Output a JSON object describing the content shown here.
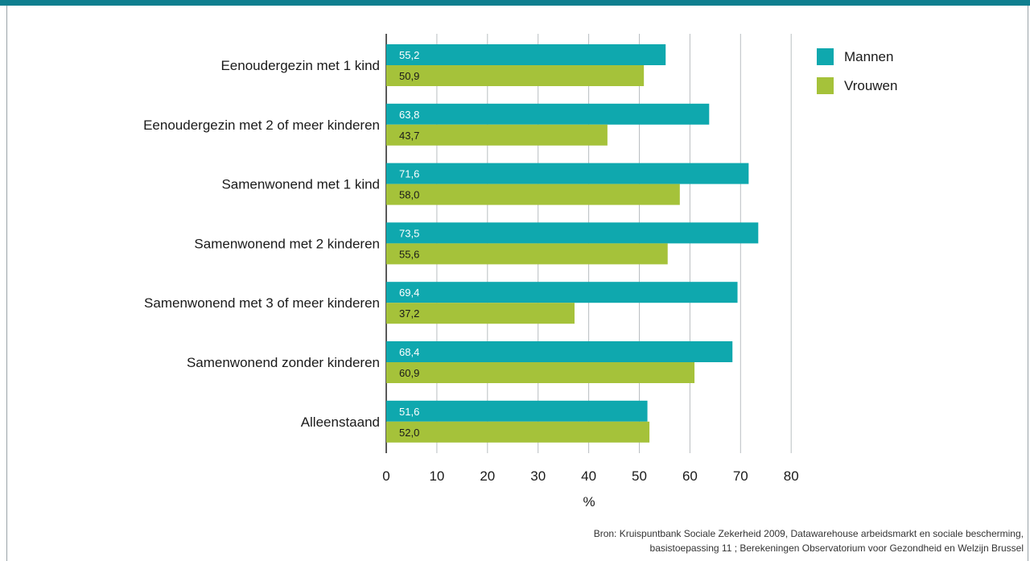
{
  "figure": {
    "title": ""
  },
  "chart_data": {
    "type": "bar",
    "orientation": "horizontal",
    "categories": [
      "Eenoudergezin met 1 kind",
      "Eenoudergezin met 2 of meer kinderen",
      "Samenwonend met 1 kind",
      "Samenwonend met 2 kinderen",
      "Samenwonend met 3 of meer kinderen",
      "Samenwonend zonder kinderen",
      "Alleenstaand"
    ],
    "series": [
      {
        "name": "Mannen",
        "color": "#0fa8ae",
        "label_color": "#ffffff",
        "values": [
          55.2,
          63.8,
          71.6,
          73.5,
          69.4,
          68.4,
          51.6
        ],
        "labels": [
          "55,2",
          "63,8",
          "71,6",
          "73,5",
          "69,4",
          "68,4",
          "51,6"
        ]
      },
      {
        "name": "Vrouwen",
        "color": "#a5c23a",
        "label_color": "#1a1a1a",
        "values": [
          50.9,
          43.7,
          58.0,
          55.6,
          37.2,
          60.9,
          52.0
        ],
        "labels": [
          "50,9",
          "43,7",
          "58,0",
          "55,6",
          "37,2",
          "60,9",
          "52,0"
        ]
      }
    ],
    "xlim": [
      0,
      80
    ],
    "xticks": [
      0,
      10,
      20,
      30,
      40,
      50,
      60,
      70,
      80
    ],
    "xlabel": "%",
    "ylabel": "",
    "grid": "vertical",
    "legend_position": "top-right"
  },
  "source": {
    "line1": "Bron: Kruispuntbank Sociale Zekerheid 2009, Datawarehouse arbeidsmarkt en sociale bescherming,",
    "line2": "basistoepassing 11 ; Berekeningen Observatorium voor Gezondheid en Welzijn Brussel"
  }
}
